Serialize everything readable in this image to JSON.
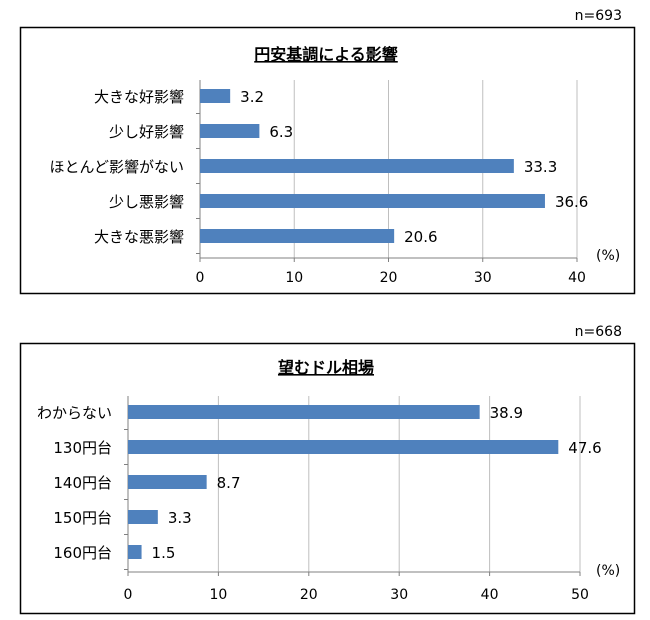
{
  "chart_data": [
    {
      "type": "bar",
      "orientation": "horizontal",
      "title": "円安基調による影響",
      "sample_size": "n=693",
      "categories": [
        "大きな好影響",
        "少し好影響",
        "ほとんど影響がない",
        "少し悪影響",
        "大きな悪影響"
      ],
      "values": [
        3.2,
        6.3,
        33.3,
        36.6,
        20.6
      ],
      "value_labels": [
        "3.2",
        "6.3",
        "33.3",
        "36.6",
        "20.6"
      ],
      "xlim": [
        0,
        40
      ],
      "xticks": [
        "0",
        "10",
        "20",
        "30",
        "40"
      ],
      "unit_label": "(%)",
      "bar_color": "#4f81bd",
      "grid": "vertical"
    },
    {
      "type": "bar",
      "orientation": "horizontal",
      "title": "望むドル相場",
      "sample_size": "n=668",
      "categories": [
        "わからない",
        "130円台",
        "140円台",
        "150円台",
        "160円台"
      ],
      "values": [
        38.9,
        47.6,
        8.7,
        3.3,
        1.5
      ],
      "value_labels": [
        "38.9",
        "47.6",
        "8.7",
        "3.3",
        "1.5"
      ],
      "xlim": [
        0,
        50
      ],
      "xticks": [
        "0",
        "10",
        "20",
        "30",
        "40",
        "50"
      ],
      "unit_label": "(%)",
      "bar_color": "#4f81bd",
      "grid": "vertical"
    }
  ]
}
